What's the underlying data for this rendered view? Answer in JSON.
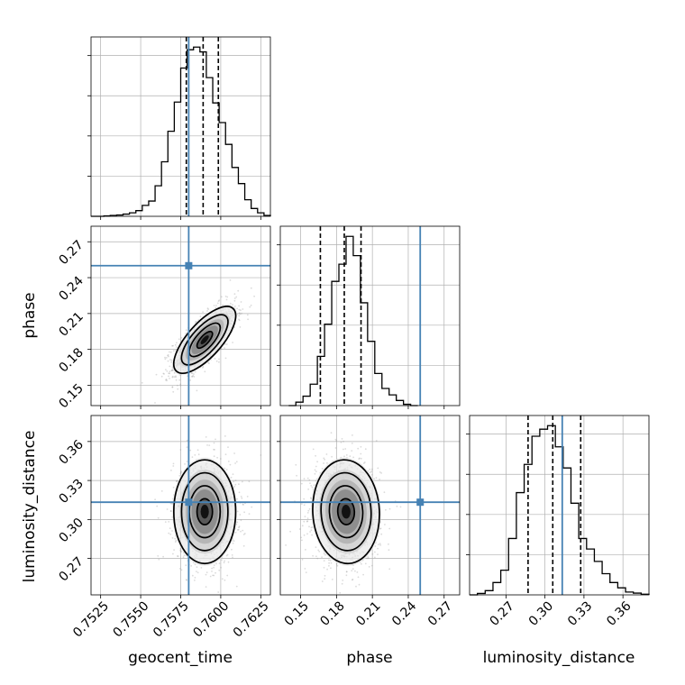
{
  "colors": {
    "truth": "#4682b4",
    "hist": "#000000",
    "contour": "#000000",
    "points": "#999999",
    "grid": "#b0b0b0"
  },
  "chart_data": [
    {
      "type": "histogram",
      "panel": "geocent_time",
      "x": [
        0.7519,
        0.7523,
        0.7527,
        0.7531,
        0.7535,
        0.7539,
        0.7543,
        0.7547,
        0.7551,
        0.7555,
        0.7559,
        0.7563,
        0.7567,
        0.7571,
        0.7575,
        0.7579,
        0.7583,
        0.7587,
        0.7591,
        0.7595,
        0.7599,
        0.7603,
        0.7607,
        0.7611,
        0.7615,
        0.7619,
        0.7623,
        0.7627
      ],
      "counts": [
        0,
        0,
        1,
        2,
        3,
        5,
        8,
        13,
        25,
        35,
        70,
        125,
        195,
        262,
        340,
        382,
        388,
        377,
        318,
        260,
        215,
        165,
        112,
        75,
        38,
        18,
        8,
        2
      ],
      "quantiles": [
        0.75785,
        0.7589,
        0.75985
      ],
      "truth": 0.758,
      "xlim": [
        0.7519,
        0.7631
      ],
      "xticks": [
        "0.7525",
        "0.7550",
        "0.7575",
        "0.7600",
        "0.7625"
      ],
      "xtick_values": [
        0.7525,
        0.755,
        0.7575,
        0.76,
        0.7625
      ],
      "xlabel": "geocent_time"
    },
    {
      "type": "histogram",
      "panel": "phase",
      "x": [
        0.14,
        0.146,
        0.152,
        0.158,
        0.164,
        0.17,
        0.176,
        0.182,
        0.188,
        0.194,
        0.2,
        0.206,
        0.212,
        0.218,
        0.224,
        0.23,
        0.236,
        0.242
      ],
      "counts": [
        0,
        8,
        22,
        50,
        115,
        190,
        290,
        330,
        395,
        350,
        240,
        150,
        75,
        40,
        25,
        12,
        3,
        0
      ],
      "quantiles": [
        0.1665,
        0.1865,
        0.2005
      ],
      "truth": 0.25,
      "xlim": [
        0.133,
        0.283
      ],
      "xticks": [
        "0.15",
        "0.18",
        "0.21",
        "0.24",
        "0.27"
      ],
      "xtick_values": [
        0.15,
        0.18,
        0.21,
        0.24,
        0.27
      ],
      "xlabel": "phase"
    },
    {
      "type": "histogram",
      "panel": "luminosity_distance",
      "x": [
        0.242,
        0.248,
        0.254,
        0.26,
        0.266,
        0.272,
        0.278,
        0.284,
        0.29,
        0.296,
        0.302,
        0.308,
        0.314,
        0.32,
        0.326,
        0.332,
        0.338,
        0.344,
        0.35,
        0.356,
        0.362,
        0.368,
        0.374
      ],
      "counts": [
        0,
        4,
        12,
        35,
        70,
        160,
        290,
        370,
        450,
        470,
        480,
        420,
        360,
        260,
        160,
        130,
        95,
        60,
        35,
        20,
        8,
        5,
        2
      ],
      "quantiles": [
        0.287,
        0.306,
        0.3275
      ],
      "truth": 0.3133,
      "xlim": [
        0.242,
        0.38
      ],
      "xticks": [
        "0.27",
        "0.30",
        "0.33",
        "0.36"
      ],
      "xtick_values": [
        0.27,
        0.3,
        0.33,
        0.36
      ],
      "xlabel": "luminosity_distance"
    },
    {
      "type": "contour2d",
      "panel": "phase vs geocent_time",
      "center": [
        0.759,
        0.188
      ],
      "std": [
        0.00092,
        0.0133
      ],
      "corr": 0.72,
      "truth": [
        0.758,
        0.25
      ],
      "xlim": [
        0.7519,
        0.7631
      ],
      "ylim": [
        0.133,
        0.283
      ],
      "yticks": [
        "0.15",
        "0.18",
        "0.21",
        "0.24",
        "0.27"
      ],
      "ytick_values": [
        0.15,
        0.18,
        0.21,
        0.24,
        0.27
      ],
      "ylabel": "phase"
    },
    {
      "type": "contour2d",
      "panel": "luminosity_distance vs geocent_time",
      "center": [
        0.759,
        0.306
      ],
      "std": [
        0.00092,
        0.019
      ],
      "corr": 0.0,
      "truth": [
        0.758,
        0.3133
      ],
      "xlim": [
        0.7519,
        0.7631
      ],
      "ylim": [
        0.242,
        0.38
      ],
      "yticks": [
        "0.27",
        "0.30",
        "0.33",
        "0.36"
      ],
      "ytick_values": [
        0.27,
        0.3,
        0.33,
        0.36
      ],
      "ylabel": "luminosity_distance"
    },
    {
      "type": "contour2d",
      "panel": "luminosity_distance vs phase",
      "center": [
        0.188,
        0.306
      ],
      "std": [
        0.0133,
        0.019
      ],
      "corr": -0.05,
      "truth": [
        0.25,
        0.3133
      ],
      "xlim": [
        0.133,
        0.283
      ],
      "ylim": [
        0.242,
        0.38
      ]
    }
  ]
}
